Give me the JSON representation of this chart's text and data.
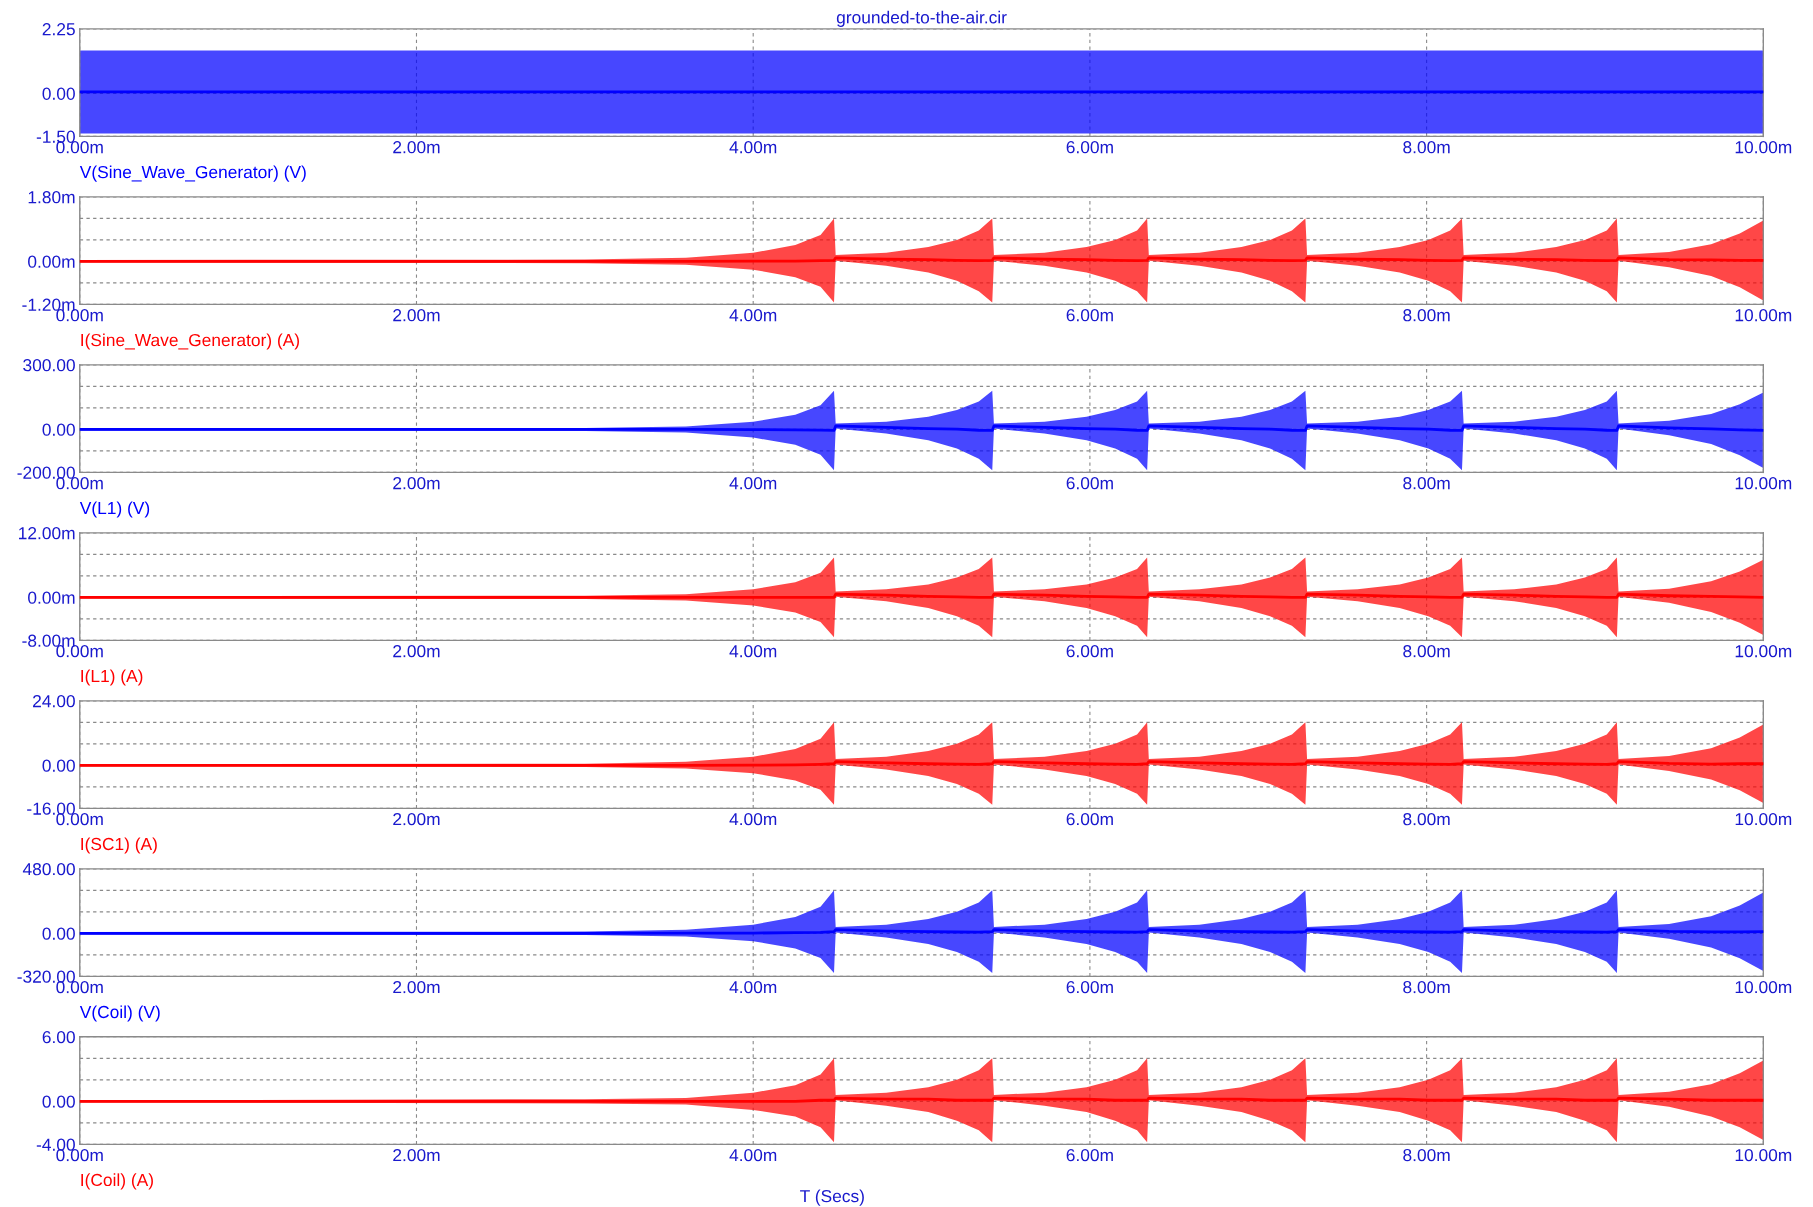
{
  "chart_data": [
    {
      "type": "line",
      "title": "grounded-to-the-air.cir",
      "xlim": [
        0,
        10
      ],
      "ylim": [
        -1.5,
        2.25
      ],
      "xticks": [
        {
          "value": 0,
          "label": "0.00m"
        },
        {
          "value": 2,
          "label": "2.00m"
        },
        {
          "value": 4,
          "label": "4.00m"
        },
        {
          "value": 6,
          "label": "6.00m"
        },
        {
          "value": 8,
          "label": "8.00m"
        },
        {
          "value": 10,
          "label": "10.00m"
        }
      ],
      "yticks": [
        {
          "value": 2.25,
          "label": "2.25"
        },
        {
          "value": 0,
          "label": "0.00"
        },
        {
          "value": -1.5,
          "label": "-1.50"
        }
      ],
      "grid": true,
      "series": [
        {
          "name": "V(Sine_Wave_Generator) (V)",
          "color": "#0000ff",
          "x": [
            0,
            10
          ],
          "values": [
            0.05,
            0.05
          ],
          "lower": [
            -1.4,
            -1.4
          ],
          "upper": [
            1.5,
            1.5
          ]
        }
      ]
    },
    {
      "type": "line",
      "xlim": [
        0,
        10
      ],
      "ylim": [
        -1.2,
        1.8
      ],
      "x": [
        0,
        3.0,
        3.6,
        4.0,
        4.25,
        4.4,
        4.48,
        4.49,
        4.79,
        5.04,
        5.21,
        5.34,
        5.42,
        5.43,
        5.73,
        5.98,
        6.15,
        6.28,
        6.34,
        6.35,
        6.65,
        6.9,
        7.07,
        7.2,
        7.28,
        7.29,
        7.59,
        7.84,
        8.01,
        8.14,
        8.21,
        8.22,
        8.52,
        8.77,
        8.94,
        9.07,
        9.13,
        9.14,
        9.44,
        9.69,
        9.86,
        10.0
      ],
      "xticks": [
        {
          "value": 0,
          "label": "0.00m"
        },
        {
          "value": 2,
          "label": "2.00m"
        },
        {
          "value": 4,
          "label": "4.00m"
        },
        {
          "value": 6,
          "label": "6.00m"
        },
        {
          "value": 8,
          "label": "8.00m"
        },
        {
          "value": 10,
          "label": "10.00m"
        }
      ],
      "yticks": [
        {
          "value": 1.8,
          "label": "1.80m"
        },
        {
          "value": 1.2,
          "label": null
        },
        {
          "value": 0.6,
          "label": null
        },
        {
          "value": 0,
          "label": "0.00m"
        },
        {
          "value": -0.6,
          "label": null
        },
        {
          "value": -1.2,
          "label": "-1.20m"
        }
      ],
      "grid": true,
      "series": [
        {
          "name": "I(Sine_Wave_Generator) (A)",
          "color": "#ff0000",
          "values": [
            0,
            0,
            0,
            0.01,
            0.01,
            0.02,
            0.03,
            0.1,
            0.06,
            0.05,
            0.03,
            0.02,
            0.03,
            0.1,
            0.06,
            0.05,
            0.03,
            0.02,
            0.03,
            0.1,
            0.06,
            0.05,
            0.03,
            0.02,
            0.03,
            0.1,
            0.06,
            0.05,
            0.03,
            0.02,
            0.03,
            0.1,
            0.06,
            0.05,
            0.03,
            0.02,
            0.03,
            0.1,
            0.05,
            0.04,
            0.03,
            0.03
          ],
          "upper": [
            0.04,
            0.05,
            0.1,
            0.24,
            0.46,
            0.74,
            1.2,
            0.18,
            0.24,
            0.4,
            0.6,
            0.86,
            1.2,
            0.18,
            0.24,
            0.4,
            0.6,
            0.86,
            1.2,
            0.18,
            0.24,
            0.4,
            0.6,
            0.86,
            1.2,
            0.18,
            0.24,
            0.4,
            0.6,
            0.86,
            1.2,
            0.18,
            0.24,
            0.4,
            0.6,
            0.86,
            1.2,
            0.18,
            0.26,
            0.48,
            0.78,
            1.14
          ],
          "lower": [
            -0.03,
            -0.05,
            -0.09,
            -0.23,
            -0.44,
            -0.71,
            -1.15,
            0.02,
            -0.12,
            -0.31,
            -0.54,
            -0.83,
            -1.15,
            0.02,
            -0.12,
            -0.31,
            -0.54,
            -0.83,
            -1.15,
            0.02,
            -0.12,
            -0.31,
            -0.54,
            -0.83,
            -1.15,
            0.02,
            -0.12,
            -0.31,
            -0.54,
            -0.83,
            -1.15,
            0.02,
            -0.12,
            -0.31,
            -0.54,
            -0.83,
            -1.15,
            0.02,
            -0.16,
            -0.41,
            -0.72,
            -1.09
          ]
        }
      ]
    },
    {
      "type": "line",
      "xlim": [
        0,
        10
      ],
      "ylim": [
        -200,
        300
      ],
      "x": [
        0,
        3.0,
        3.6,
        4.0,
        4.25,
        4.4,
        4.48,
        4.49,
        4.79,
        5.04,
        5.21,
        5.34,
        5.42,
        5.43,
        5.73,
        5.98,
        6.15,
        6.28,
        6.34,
        6.35,
        6.65,
        6.9,
        7.07,
        7.2,
        7.28,
        7.29,
        7.59,
        7.84,
        8.01,
        8.14,
        8.21,
        8.22,
        8.52,
        8.77,
        8.94,
        9.07,
        9.13,
        9.14,
        9.44,
        9.69,
        9.86,
        10.0
      ],
      "xticks": [
        {
          "value": 0,
          "label": "0.00m"
        },
        {
          "value": 2,
          "label": "2.00m"
        },
        {
          "value": 4,
          "label": "4.00m"
        },
        {
          "value": 6,
          "label": "6.00m"
        },
        {
          "value": 8,
          "label": "8.00m"
        },
        {
          "value": 10,
          "label": "10.00m"
        }
      ],
      "yticks": [
        {
          "value": 300,
          "label": "300.00"
        },
        {
          "value": 200,
          "label": null
        },
        {
          "value": 100,
          "label": null
        },
        {
          "value": 0,
          "label": "0.00"
        },
        {
          "value": -100,
          "label": null
        },
        {
          "value": -200,
          "label": "-200.00"
        }
      ],
      "grid": true,
      "series": [
        {
          "name": "V(L1) (V)",
          "color": "#0000ff",
          "values": [
            0,
            0,
            0,
            -1,
            -2,
            -3,
            -5,
            16,
            9,
            4,
            1,
            -4,
            -5,
            16,
            9,
            4,
            1,
            -4,
            -5,
            16,
            9,
            4,
            1,
            -4,
            -5,
            16,
            9,
            4,
            1,
            -4,
            -5,
            16,
            9,
            4,
            1,
            -4,
            -5,
            16,
            7,
            2,
            -2,
            -5
          ],
          "upper": [
            5,
            7,
            14,
            36,
            68,
            112,
            180,
            27,
            36,
            59,
            90,
            130,
            180,
            27,
            36,
            59,
            90,
            130,
            180,
            27,
            36,
            59,
            90,
            130,
            180,
            27,
            36,
            59,
            90,
            130,
            180,
            27,
            36,
            59,
            90,
            130,
            180,
            27,
            40,
            72,
            117,
            171
          ],
          "lower": [
            -6,
            -8,
            -15,
            -38,
            -72,
            -118,
            -190,
            4,
            -19,
            -51,
            -89,
            -137,
            -190,
            4,
            -19,
            -51,
            -89,
            -137,
            -190,
            4,
            -19,
            -51,
            -89,
            -137,
            -190,
            4,
            -19,
            -51,
            -89,
            -137,
            -190,
            4,
            -19,
            -51,
            -89,
            -137,
            -190,
            4,
            -27,
            -68,
            -120,
            -180
          ]
        }
      ]
    },
    {
      "type": "line",
      "xlim": [
        0,
        10
      ],
      "ylim": [
        -8,
        12
      ],
      "x": [
        0,
        3.0,
        3.6,
        4.0,
        4.25,
        4.4,
        4.48,
        4.49,
        4.79,
        5.04,
        5.21,
        5.34,
        5.42,
        5.43,
        5.73,
        5.98,
        6.15,
        6.28,
        6.34,
        6.35,
        6.65,
        6.9,
        7.07,
        7.2,
        7.28,
        7.29,
        7.59,
        7.84,
        8.01,
        8.14,
        8.21,
        8.22,
        8.52,
        8.77,
        8.94,
        9.07,
        9.13,
        9.14,
        9.44,
        9.69,
        9.86,
        10.0
      ],
      "xticks": [
        {
          "value": 0,
          "label": "0.00m"
        },
        {
          "value": 2,
          "label": "2.00m"
        },
        {
          "value": 4,
          "label": "4.00m"
        },
        {
          "value": 6,
          "label": "6.00m"
        },
        {
          "value": 8,
          "label": "8.00m"
        },
        {
          "value": 10,
          "label": "10.00m"
        }
      ],
      "yticks": [
        {
          "value": 12,
          "label": "12.00m"
        },
        {
          "value": 8,
          "label": null
        },
        {
          "value": 4,
          "label": null
        },
        {
          "value": 0,
          "label": "0.00m"
        },
        {
          "value": -4,
          "label": null
        },
        {
          "value": -8,
          "label": "-8.00m"
        }
      ],
      "grid": true,
      "series": [
        {
          "name": "I(L1) (A)",
          "color": "#ff0000",
          "values": [
            0,
            0,
            0,
            0,
            0,
            0,
            0,
            0.6,
            0.4,
            0.2,
            0.1,
            0,
            0,
            0.6,
            0.4,
            0.2,
            0.1,
            0,
            0,
            0.6,
            0.4,
            0.2,
            0.1,
            0,
            0,
            0.6,
            0.4,
            0.2,
            0.1,
            0,
            0,
            0.6,
            0.4,
            0.2,
            0.1,
            0,
            0,
            0.6,
            0.3,
            0.2,
            0.1,
            0
          ],
          "upper": [
            0.2,
            0.3,
            0.6,
            1.5,
            2.8,
            4.6,
            7.4,
            1.1,
            1.5,
            2.4,
            3.7,
            5.3,
            7.4,
            1.1,
            1.5,
            2.4,
            3.7,
            5.3,
            7.4,
            1.1,
            1.5,
            2.4,
            3.7,
            5.3,
            7.4,
            1.1,
            1.5,
            2.4,
            3.7,
            5.3,
            7.4,
            1.1,
            1.5,
            2.4,
            3.7,
            5.3,
            7.4,
            1.1,
            1.6,
            3.0,
            4.8,
            7.0
          ],
          "lower": [
            -0.2,
            -0.3,
            -0.6,
            -1.5,
            -2.8,
            -4.6,
            -7.4,
            0.1,
            -0.7,
            -2.0,
            -3.5,
            -5.3,
            -7.4,
            0.1,
            -0.7,
            -2.0,
            -3.5,
            -5.3,
            -7.4,
            0.1,
            -0.7,
            -2.0,
            -3.5,
            -5.3,
            -7.4,
            0.1,
            -0.7,
            -2.0,
            -3.5,
            -5.3,
            -7.4,
            0.1,
            -0.7,
            -2.0,
            -3.5,
            -5.3,
            -7.4,
            0.1,
            -1.0,
            -2.7,
            -4.7,
            -7.0
          ]
        }
      ]
    },
    {
      "type": "line",
      "xlim": [
        0,
        10
      ],
      "ylim": [
        -16,
        24
      ],
      "x": [
        0,
        3.0,
        3.6,
        4.0,
        4.25,
        4.4,
        4.48,
        4.49,
        4.79,
        5.04,
        5.21,
        5.34,
        5.42,
        5.43,
        5.73,
        5.98,
        6.15,
        6.28,
        6.34,
        6.35,
        6.65,
        6.9,
        7.07,
        7.2,
        7.28,
        7.29,
        7.59,
        7.84,
        8.01,
        8.14,
        8.21,
        8.22,
        8.52,
        8.77,
        8.94,
        9.07,
        9.13,
        9.14,
        9.44,
        9.69,
        9.86,
        10.0
      ],
      "xticks": [
        {
          "value": 0,
          "label": "0.00m"
        },
        {
          "value": 2,
          "label": "2.00m"
        },
        {
          "value": 4,
          "label": "4.00m"
        },
        {
          "value": 6,
          "label": "6.00m"
        },
        {
          "value": 8,
          "label": "8.00m"
        },
        {
          "value": 10,
          "label": "10.00m"
        }
      ],
      "yticks": [
        {
          "value": 24,
          "label": "24.00"
        },
        {
          "value": 16,
          "label": null
        },
        {
          "value": 8,
          "label": null
        },
        {
          "value": 0,
          "label": "0.00"
        },
        {
          "value": -8,
          "label": null
        },
        {
          "value": -16,
          "label": "-16.00"
        }
      ],
      "grid": true,
      "series": [
        {
          "name": "I(SC1) (A)",
          "color": "#ff0000",
          "values": [
            0,
            0,
            0,
            0.1,
            0.2,
            0.4,
            0.6,
            1.4,
            0.9,
            0.6,
            0.5,
            0.4,
            0.6,
            1.4,
            0.9,
            0.6,
            0.5,
            0.4,
            0.6,
            1.4,
            0.9,
            0.6,
            0.5,
            0.4,
            0.6,
            1.4,
            0.9,
            0.6,
            0.5,
            0.4,
            0.6,
            1.4,
            0.9,
            0.6,
            0.5,
            0.4,
            0.6,
            1.4,
            0.7,
            0.5,
            0.6,
            0.6
          ],
          "upper": [
            0.5,
            0.6,
            1.3,
            3.2,
            6.1,
            9.9,
            16,
            2.4,
            3.2,
            5.3,
            8,
            11.5,
            16,
            2.4,
            3.2,
            5.3,
            8,
            11.5,
            16,
            2.4,
            3.2,
            5.3,
            8,
            11.5,
            16,
            2.4,
            3.2,
            5.3,
            8,
            11.5,
            16,
            2.4,
            3.2,
            5.3,
            8,
            11.5,
            16,
            2.4,
            3.5,
            6.4,
            10.4,
            15.2
          ],
          "lower": [
            -0.4,
            -0.6,
            -1.2,
            -2.9,
            -5.6,
            -9.1,
            -14.7,
            0.3,
            -1.5,
            -4,
            -6.9,
            -10.6,
            -14.7,
            0.3,
            -1.5,
            -4,
            -6.9,
            -10.6,
            -14.7,
            0.3,
            -1.5,
            -4,
            -6.9,
            -10.6,
            -14.7,
            0.3,
            -1.5,
            -4,
            -6.9,
            -10.6,
            -14.7,
            0.3,
            -1.5,
            -4,
            -6.9,
            -10.6,
            -14.7,
            0.3,
            -2.1,
            -5.3,
            -9.3,
            -14
          ]
        }
      ]
    },
    {
      "type": "line",
      "xlim": [
        0,
        10
      ],
      "ylim": [
        -320,
        480
      ],
      "x": [
        0,
        3.0,
        3.6,
        4.0,
        4.25,
        4.4,
        4.48,
        4.49,
        4.79,
        5.04,
        5.21,
        5.34,
        5.42,
        5.43,
        5.73,
        5.98,
        6.15,
        6.28,
        6.34,
        6.35,
        6.65,
        6.9,
        7.07,
        7.2,
        7.28,
        7.29,
        7.59,
        7.84,
        8.01,
        8.14,
        8.21,
        8.22,
        8.52,
        8.77,
        8.94,
        9.07,
        9.13,
        9.14,
        9.44,
        9.69,
        9.86,
        10.0
      ],
      "xticks": [
        {
          "value": 0,
          "label": "0.00m"
        },
        {
          "value": 2,
          "label": "2.00m"
        },
        {
          "value": 4,
          "label": "4.00m"
        },
        {
          "value": 6,
          "label": "6.00m"
        },
        {
          "value": 8,
          "label": "8.00m"
        },
        {
          "value": 10,
          "label": "10.00m"
        }
      ],
      "yticks": [
        {
          "value": 480,
          "label": "480.00"
        },
        {
          "value": 320,
          "label": null
        },
        {
          "value": 160,
          "label": null
        },
        {
          "value": 0,
          "label": "0.00"
        },
        {
          "value": -160,
          "label": null
        },
        {
          "value": -320,
          "label": "-320.00"
        }
      ],
      "grid": true,
      "series": [
        {
          "name": "V(Coil) (V)",
          "color": "#0000ff",
          "values": [
            0,
            0,
            1,
            2,
            5,
            8,
            12,
            27,
            17,
            13,
            10,
            9,
            12,
            27,
            17,
            13,
            10,
            9,
            12,
            27,
            17,
            13,
            10,
            9,
            12,
            27,
            17,
            13,
            10,
            9,
            12,
            27,
            17,
            13,
            10,
            9,
            12,
            27,
            14,
            11,
            11,
            12
          ],
          "upper": [
            10,
            13,
            26,
            64,
            122,
            198,
            320,
            48,
            64,
            106,
            160,
            230,
            320,
            48,
            64,
            106,
            160,
            230,
            320,
            48,
            64,
            106,
            160,
            230,
            320,
            48,
            64,
            106,
            160,
            230,
            320,
            48,
            64,
            106,
            160,
            230,
            320,
            48,
            70,
            128,
            208,
            304
          ],
          "lower": [
            -9,
            -12,
            -24,
            -59,
            -112,
            -183,
            -295,
            6,
            -30,
            -80,
            -139,
            -212,
            -295,
            6,
            -30,
            -80,
            -139,
            -212,
            -295,
            6,
            -30,
            -80,
            -139,
            -212,
            -295,
            6,
            -30,
            -80,
            -139,
            -212,
            -295,
            6,
            -30,
            -80,
            -139,
            -212,
            -295,
            6,
            -41,
            -106,
            -186,
            -280
          ]
        }
      ]
    },
    {
      "type": "line",
      "xlim": [
        0,
        10
      ],
      "ylim": [
        -4,
        6
      ],
      "xlabel": "T (Secs)",
      "x": [
        0,
        3.0,
        3.6,
        4.0,
        4.25,
        4.4,
        4.48,
        4.49,
        4.79,
        5.04,
        5.21,
        5.34,
        5.42,
        5.43,
        5.73,
        5.98,
        6.15,
        6.28,
        6.34,
        6.35,
        6.65,
        6.9,
        7.07,
        7.2,
        7.28,
        7.29,
        7.59,
        7.84,
        8.01,
        8.14,
        8.21,
        8.22,
        8.52,
        8.77,
        8.94,
        9.07,
        9.13,
        9.14,
        9.44,
        9.69,
        9.86,
        10.0
      ],
      "xticks": [
        {
          "value": 0,
          "label": "0.00m"
        },
        {
          "value": 2,
          "label": "2.00m"
        },
        {
          "value": 4,
          "label": "4.00m"
        },
        {
          "value": 6,
          "label": "6.00m"
        },
        {
          "value": 8,
          "label": "8.00m"
        },
        {
          "value": 10,
          "label": "10.00m"
        }
      ],
      "yticks": [
        {
          "value": 6,
          "label": "6.00"
        },
        {
          "value": 4,
          "label": null
        },
        {
          "value": 2,
          "label": null
        },
        {
          "value": 0,
          "label": "0.00"
        },
        {
          "value": -2,
          "label": null
        },
        {
          "value": -4,
          "label": "-4.00"
        }
      ],
      "grid": true,
      "series": [
        {
          "name": "I(Coil) (A)",
          "color": "#ff0000",
          "values": [
            0,
            0,
            0,
            0,
            0,
            0.1,
            0.1,
            0.3,
            0.2,
            0.2,
            0.1,
            0.1,
            0.1,
            0.3,
            0.2,
            0.2,
            0.1,
            0.1,
            0.1,
            0.3,
            0.2,
            0.2,
            0.1,
            0.1,
            0.1,
            0.3,
            0.2,
            0.2,
            0.1,
            0.1,
            0.1,
            0.3,
            0.2,
            0.2,
            0.1,
            0.1,
            0.1,
            0.3,
            0.2,
            0.1,
            0.1,
            0.1
          ],
          "upper": [
            0.1,
            0.2,
            0.3,
            0.8,
            1.5,
            2.5,
            4,
            0.6,
            0.8,
            1.3,
            2,
            2.9,
            4,
            0.6,
            0.8,
            1.3,
            2,
            2.9,
            4,
            0.6,
            0.8,
            1.3,
            2,
            2.9,
            4,
            0.6,
            0.8,
            1.3,
            2,
            2.9,
            4,
            0.6,
            0.8,
            1.3,
            2,
            2.9,
            4,
            0.6,
            0.9,
            1.6,
            2.6,
            3.8
          ],
          "lower": [
            -0.1,
            -0.2,
            -0.3,
            -0.8,
            -1.4,
            -2.4,
            -3.8,
            0.1,
            -0.4,
            -1,
            -1.8,
            -2.7,
            -3.8,
            0.1,
            -0.4,
            -1,
            -1.8,
            -2.7,
            -3.8,
            0.1,
            -0.4,
            -1,
            -1.8,
            -2.7,
            -3.8,
            0.1,
            -0.4,
            -1,
            -1.8,
            -2.7,
            -3.8,
            0.1,
            -0.4,
            -1,
            -1.8,
            -2.7,
            -3.8,
            0.1,
            -0.5,
            -1.4,
            -2.4,
            -3.6
          ]
        }
      ]
    }
  ]
}
